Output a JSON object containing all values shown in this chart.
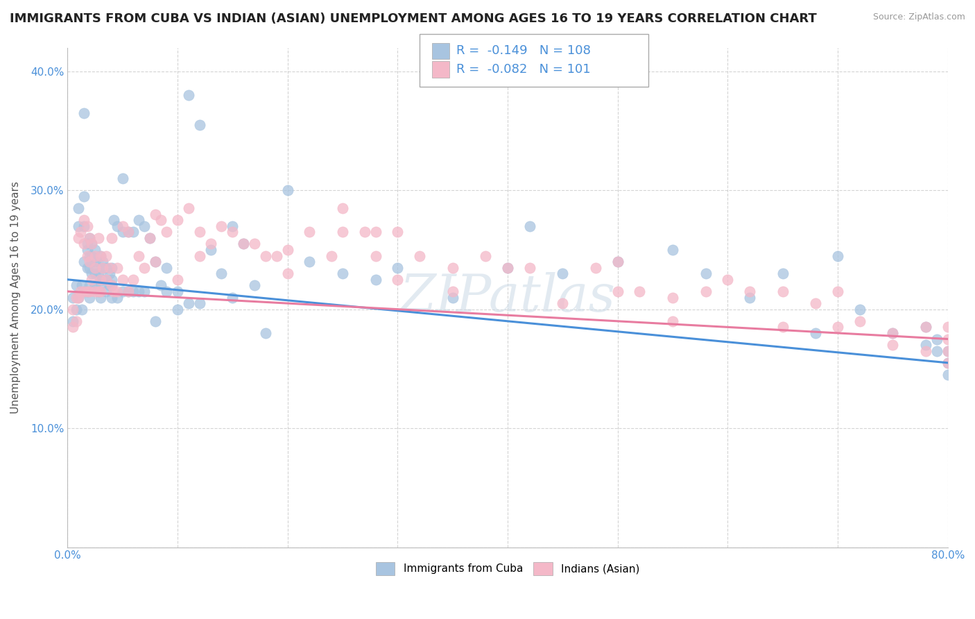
{
  "title": "IMMIGRANTS FROM CUBA VS INDIAN (ASIAN) UNEMPLOYMENT AMONG AGES 16 TO 19 YEARS CORRELATION CHART",
  "source": "Source: ZipAtlas.com",
  "ylabel": "Unemployment Among Ages 16 to 19 years",
  "xlim": [
    0.0,
    0.8
  ],
  "ylim": [
    0.0,
    0.42
  ],
  "xticks": [
    0.0,
    0.1,
    0.2,
    0.3,
    0.4,
    0.5,
    0.6,
    0.7,
    0.8
  ],
  "xticklabels": [
    "0.0%",
    "",
    "",
    "",
    "",
    "",
    "",
    "",
    "80.0%"
  ],
  "yticks": [
    0.0,
    0.1,
    0.2,
    0.3,
    0.4
  ],
  "yticklabels": [
    "",
    "10.0%",
    "20.0%",
    "30.0%",
    "40.0%"
  ],
  "cuba_color": "#a8c4e0",
  "indian_color": "#f4b8c8",
  "cuba_line_color": "#4a90d9",
  "indian_line_color": "#e87ca0",
  "cuba_R": -0.149,
  "cuba_N": 108,
  "indian_R": -0.082,
  "indian_N": 101,
  "watermark": "ZIPatlas",
  "background_color": "#ffffff",
  "grid_color": "#d0d0d0",
  "title_fontsize": 13,
  "axis_fontsize": 11,
  "legend_fontsize": 13,
  "cuba_x": [
    0.005,
    0.005,
    0.008,
    0.008,
    0.01,
    0.01,
    0.01,
    0.013,
    0.013,
    0.015,
    0.015,
    0.015,
    0.015,
    0.015,
    0.018,
    0.018,
    0.018,
    0.018,
    0.02,
    0.02,
    0.02,
    0.02,
    0.02,
    0.022,
    0.022,
    0.022,
    0.022,
    0.025,
    0.025,
    0.025,
    0.025,
    0.028,
    0.028,
    0.03,
    0.03,
    0.03,
    0.03,
    0.03,
    0.032,
    0.032,
    0.032,
    0.035,
    0.035,
    0.035,
    0.038,
    0.038,
    0.04,
    0.04,
    0.04,
    0.04,
    0.042,
    0.045,
    0.045,
    0.05,
    0.05,
    0.05,
    0.055,
    0.055,
    0.06,
    0.06,
    0.065,
    0.065,
    0.07,
    0.07,
    0.075,
    0.08,
    0.08,
    0.085,
    0.09,
    0.09,
    0.1,
    0.1,
    0.11,
    0.11,
    0.12,
    0.12,
    0.13,
    0.14,
    0.15,
    0.15,
    0.16,
    0.17,
    0.18,
    0.2,
    0.22,
    0.25,
    0.28,
    0.3,
    0.35,
    0.4,
    0.42,
    0.45,
    0.5,
    0.55,
    0.58,
    0.62,
    0.65,
    0.68,
    0.7,
    0.72,
    0.75,
    0.78,
    0.78,
    0.79,
    0.79,
    0.8,
    0.8,
    0.8
  ],
  "cuba_y": [
    0.21,
    0.19,
    0.22,
    0.2,
    0.285,
    0.27,
    0.21,
    0.2,
    0.22,
    0.365,
    0.295,
    0.27,
    0.24,
    0.215,
    0.255,
    0.25,
    0.235,
    0.215,
    0.26,
    0.245,
    0.235,
    0.22,
    0.21,
    0.255,
    0.245,
    0.24,
    0.23,
    0.25,
    0.24,
    0.23,
    0.22,
    0.23,
    0.215,
    0.245,
    0.235,
    0.225,
    0.22,
    0.21,
    0.24,
    0.235,
    0.225,
    0.235,
    0.225,
    0.215,
    0.23,
    0.22,
    0.235,
    0.225,
    0.22,
    0.21,
    0.275,
    0.27,
    0.21,
    0.31,
    0.265,
    0.215,
    0.265,
    0.215,
    0.265,
    0.215,
    0.275,
    0.215,
    0.27,
    0.215,
    0.26,
    0.24,
    0.19,
    0.22,
    0.235,
    0.215,
    0.215,
    0.2,
    0.38,
    0.205,
    0.355,
    0.205,
    0.25,
    0.23,
    0.27,
    0.21,
    0.255,
    0.22,
    0.18,
    0.3,
    0.24,
    0.23,
    0.225,
    0.235,
    0.21,
    0.235,
    0.27,
    0.23,
    0.24,
    0.25,
    0.23,
    0.21,
    0.23,
    0.18,
    0.245,
    0.2,
    0.18,
    0.185,
    0.17,
    0.175,
    0.165,
    0.165,
    0.155,
    0.145
  ],
  "indian_x": [
    0.005,
    0.005,
    0.008,
    0.008,
    0.01,
    0.01,
    0.012,
    0.012,
    0.015,
    0.015,
    0.015,
    0.018,
    0.018,
    0.018,
    0.02,
    0.02,
    0.02,
    0.022,
    0.022,
    0.025,
    0.025,
    0.025,
    0.028,
    0.028,
    0.03,
    0.03,
    0.03,
    0.032,
    0.035,
    0.035,
    0.038,
    0.04,
    0.04,
    0.042,
    0.045,
    0.045,
    0.05,
    0.05,
    0.055,
    0.055,
    0.06,
    0.065,
    0.07,
    0.075,
    0.08,
    0.08,
    0.085,
    0.09,
    0.1,
    0.1,
    0.11,
    0.12,
    0.12,
    0.13,
    0.14,
    0.15,
    0.16,
    0.17,
    0.18,
    0.19,
    0.2,
    0.2,
    0.22,
    0.24,
    0.25,
    0.25,
    0.27,
    0.28,
    0.28,
    0.3,
    0.3,
    0.32,
    0.35,
    0.35,
    0.38,
    0.4,
    0.42,
    0.45,
    0.48,
    0.5,
    0.5,
    0.52,
    0.55,
    0.55,
    0.58,
    0.6,
    0.62,
    0.65,
    0.65,
    0.68,
    0.7,
    0.7,
    0.72,
    0.75,
    0.75,
    0.78,
    0.78,
    0.8,
    0.8,
    0.8,
    0.8
  ],
  "indian_y": [
    0.2,
    0.185,
    0.21,
    0.19,
    0.26,
    0.21,
    0.265,
    0.215,
    0.275,
    0.255,
    0.215,
    0.27,
    0.245,
    0.215,
    0.26,
    0.24,
    0.215,
    0.255,
    0.225,
    0.245,
    0.235,
    0.215,
    0.26,
    0.215,
    0.245,
    0.225,
    0.215,
    0.235,
    0.245,
    0.225,
    0.235,
    0.26,
    0.22,
    0.215,
    0.235,
    0.215,
    0.27,
    0.225,
    0.265,
    0.215,
    0.225,
    0.245,
    0.235,
    0.26,
    0.28,
    0.24,
    0.275,
    0.265,
    0.275,
    0.225,
    0.285,
    0.265,
    0.245,
    0.255,
    0.27,
    0.265,
    0.255,
    0.255,
    0.245,
    0.245,
    0.25,
    0.23,
    0.265,
    0.245,
    0.285,
    0.265,
    0.265,
    0.265,
    0.245,
    0.265,
    0.225,
    0.245,
    0.235,
    0.215,
    0.245,
    0.235,
    0.235,
    0.205,
    0.235,
    0.215,
    0.24,
    0.215,
    0.21,
    0.19,
    0.215,
    0.225,
    0.215,
    0.215,
    0.185,
    0.205,
    0.215,
    0.185,
    0.19,
    0.18,
    0.17,
    0.185,
    0.165,
    0.185,
    0.175,
    0.165,
    0.155
  ]
}
